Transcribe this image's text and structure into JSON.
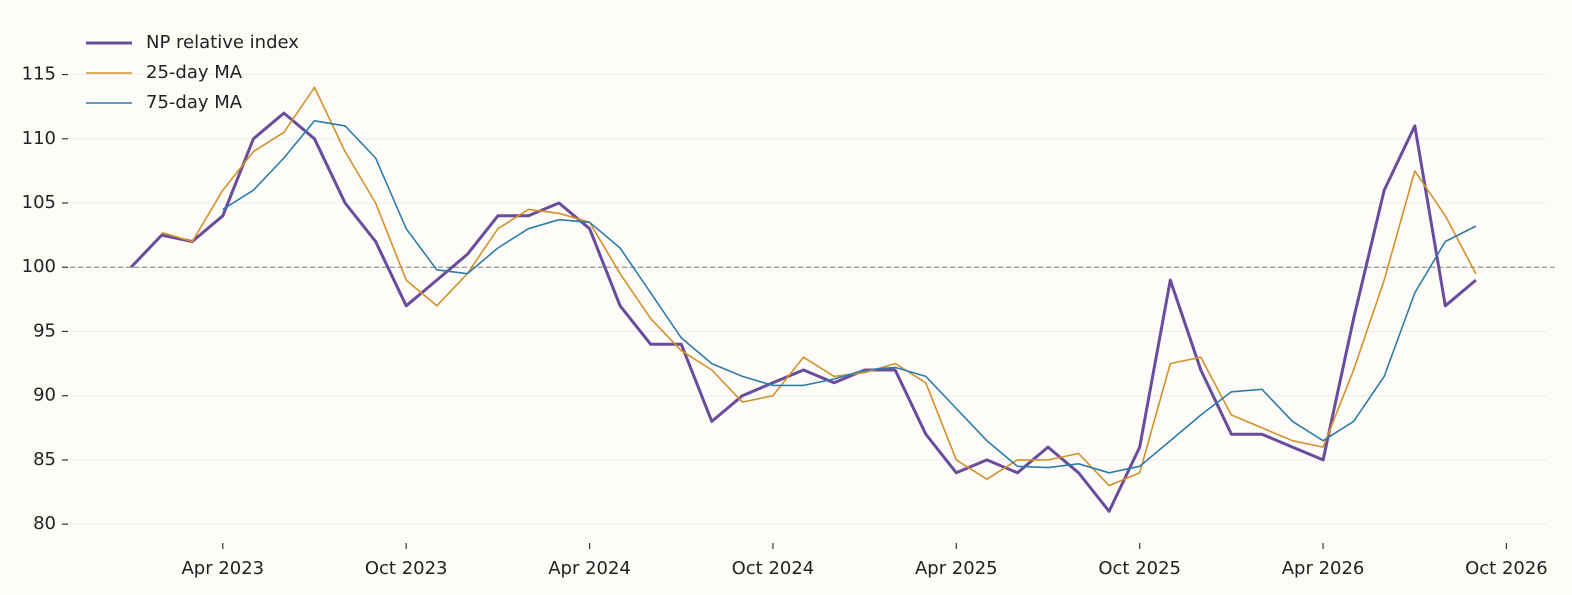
{
  "chart_data": {
    "type": "line",
    "x": [
      "2023-01",
      "2023-02",
      "2023-03",
      "2023-04",
      "2023-05",
      "2023-06",
      "2023-07",
      "2023-08",
      "2023-09",
      "2023-10",
      "2023-11",
      "2023-12",
      "2024-01",
      "2024-02",
      "2024-03",
      "2024-04",
      "2024-05",
      "2024-06",
      "2024-07",
      "2024-08",
      "2024-09",
      "2024-10",
      "2024-11",
      "2024-12",
      "2025-01",
      "2025-02",
      "2025-03",
      "2025-04",
      "2025-05",
      "2025-06",
      "2025-07",
      "2025-08",
      "2025-09",
      "2025-10",
      "2025-11",
      "2025-12",
      "2026-01",
      "2026-02",
      "2026-03",
      "2026-04",
      "2026-05",
      "2026-06",
      "2026-07",
      "2026-08",
      "2026-09"
    ],
    "series": [
      {
        "name": "NP relative index",
        "color": "#6a4c9c",
        "width": 3,
        "values": [
          100,
          102.5,
          102,
          104,
          110,
          112,
          110,
          105,
          102,
          97,
          99,
          101,
          104,
          104,
          105,
          103,
          97,
          94,
          94,
          88,
          90,
          91,
          92,
          91,
          92,
          92,
          87,
          84,
          85,
          84,
          86,
          84,
          81,
          86,
          99,
          92,
          87,
          87,
          86,
          85,
          96,
          106,
          111,
          97,
          99
        ]
      },
      {
        "name": "25-day MA",
        "color": "#d4912a",
        "width": 1.6,
        "values": [
          null,
          102.7,
          102,
          106,
          109,
          110.5,
          114,
          109,
          105,
          99,
          97,
          99.5,
          103,
          104.5,
          104.2,
          103.5,
          99.5,
          96,
          93.5,
          92,
          89.5,
          90,
          93,
          91.5,
          91.8,
          92.5,
          91,
          85,
          83.5,
          85,
          85,
          85.5,
          83,
          84,
          92.5,
          93,
          88.5,
          87.5,
          86.5,
          86,
          92,
          99,
          107.5,
          104,
          99.5
        ]
      },
      {
        "name": "75-day MA",
        "color": "#2f7ca8",
        "width": 1.6,
        "values": [
          null,
          null,
          null,
          104.5,
          106,
          108.5,
          111.4,
          111,
          108.5,
          103,
          99.8,
          99.5,
          101.5,
          103,
          103.7,
          103.5,
          101.5,
          98,
          94.5,
          92.5,
          91.5,
          90.8,
          90.8,
          91.3,
          92,
          92.2,
          91.5,
          89,
          86.5,
          84.5,
          84.4,
          84.7,
          84,
          84.5,
          86.5,
          88.5,
          90.3,
          90.5,
          88,
          86.5,
          88,
          91.5,
          98,
          102,
          103.2
        ]
      }
    ],
    "xlim": [
      "2022-11",
      "2026-11"
    ],
    "xticks": [
      {
        "value": "2023-04",
        "label": "Apr 2023"
      },
      {
        "value": "2023-10",
        "label": "Oct 2023"
      },
      {
        "value": "2024-04",
        "label": "Apr 2024"
      },
      {
        "value": "2024-10",
        "label": "Oct 2024"
      },
      {
        "value": "2025-04",
        "label": "Apr 2025"
      },
      {
        "value": "2025-10",
        "label": "Oct 2025"
      },
      {
        "value": "2026-04",
        "label": "Apr 2026"
      },
      {
        "value": "2026-10",
        "label": "Oct 2026"
      }
    ],
    "ylim": [
      79,
      118
    ],
    "yticks": [
      80,
      85,
      90,
      95,
      100,
      105,
      110,
      115
    ],
    "grid": true,
    "hline": 100,
    "legend": "upper-left"
  }
}
